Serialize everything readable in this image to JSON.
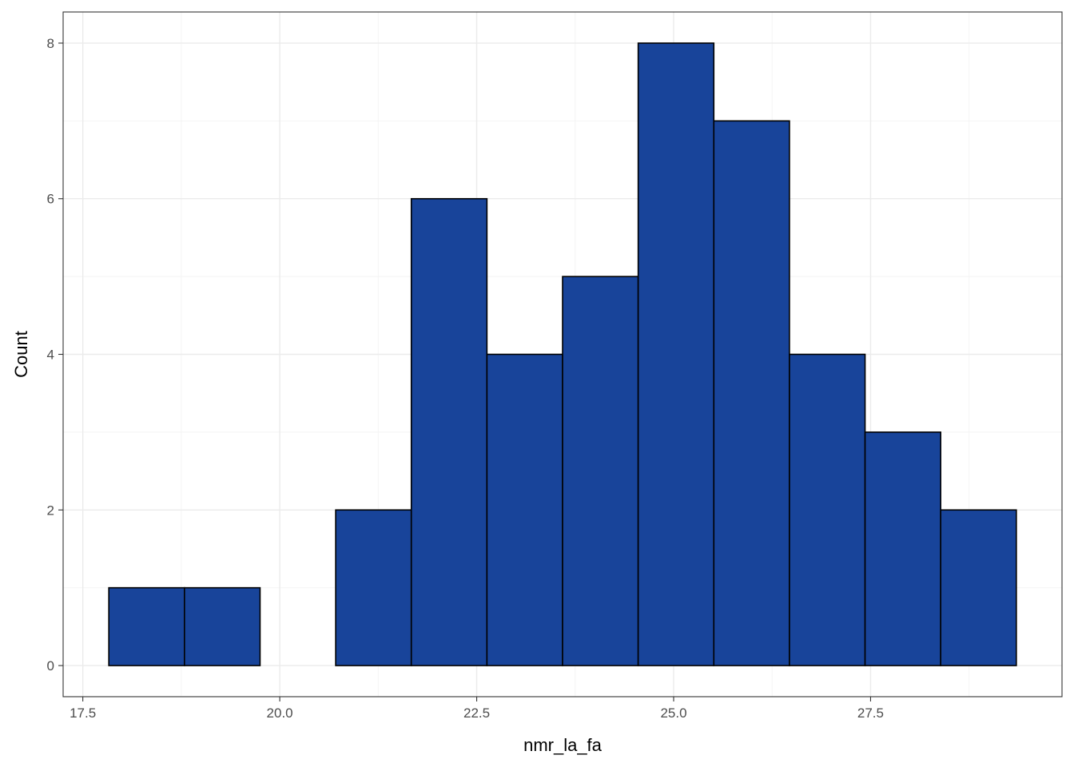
{
  "chart_data": {
    "type": "bar",
    "subtype": "histogram",
    "title": "",
    "xlabel": "nmr_la_fa",
    "ylabel": "Count",
    "bins": [
      {
        "x0": 17.83,
        "x1": 18.79,
        "count": 1
      },
      {
        "x0": 18.79,
        "x1": 19.75,
        "count": 1
      },
      {
        "x0": 19.75,
        "x1": 20.71,
        "count": 0
      },
      {
        "x0": 20.71,
        "x1": 21.67,
        "count": 2
      },
      {
        "x0": 21.67,
        "x1": 22.63,
        "count": 6
      },
      {
        "x0": 22.63,
        "x1": 23.59,
        "count": 4
      },
      {
        "x0": 23.59,
        "x1": 24.55,
        "count": 5
      },
      {
        "x0": 24.55,
        "x1": 25.51,
        "count": 8
      },
      {
        "x0": 25.51,
        "x1": 26.47,
        "count": 7
      },
      {
        "x0": 26.47,
        "x1": 27.43,
        "count": 4
      },
      {
        "x0": 27.43,
        "x1": 28.39,
        "count": 3
      },
      {
        "x0": 28.39,
        "x1": 29.35,
        "count": 2
      }
    ],
    "xlim": [
      17.25,
      29.93
    ],
    "ylim": [
      -0.4,
      8.4
    ],
    "x_ticks": [
      17.5,
      20.0,
      22.5,
      25.0,
      27.5
    ],
    "x_tick_labels": [
      "17.5",
      "20.0",
      "22.5",
      "25.0",
      "27.5"
    ],
    "y_ticks": [
      0,
      2,
      4,
      6,
      8
    ],
    "y_tick_labels": [
      "0",
      "2",
      "4",
      "6",
      "8"
    ],
    "grid": true,
    "legend": "none",
    "colors": {
      "bar_fill": "#18449a",
      "bar_stroke": "#000000",
      "grid_major": "#ebebeb",
      "grid_minor": "#f4f4f4",
      "panel_border": "#333333"
    }
  }
}
